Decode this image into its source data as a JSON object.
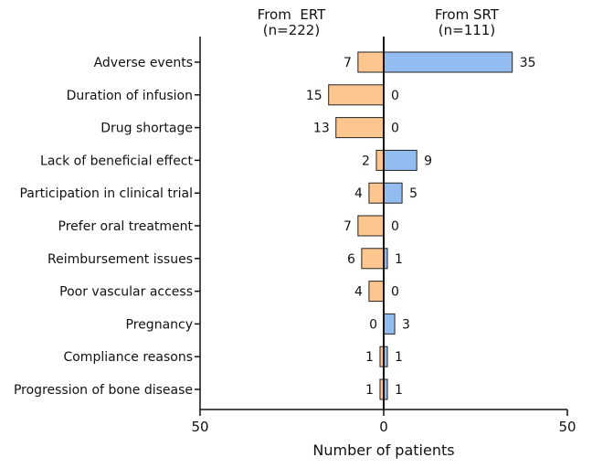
{
  "chart_data": {
    "type": "bar",
    "orientation": "horizontal-diverging",
    "left_header": {
      "title": "From  ERT",
      "subtitle": "(n=222)"
    },
    "right_header": {
      "title": "From SRT",
      "subtitle": "(n=111)"
    },
    "xlabel": "Number of patients",
    "xlim": [
      -50,
      50
    ],
    "x_ticks": [
      {
        "value": -50,
        "label": "50"
      },
      {
        "value": 0,
        "label": "0"
      },
      {
        "value": 50,
        "label": "50"
      }
    ],
    "categories": [
      "Adverse events",
      "Duration of infusion",
      "Drug shortage",
      "Lack of beneficial effect",
      "Participation in clinical trial",
      "Prefer oral treatment",
      "Reimbursement issues",
      "Poor vascular access",
      "Pregnancy",
      "Compliance reasons",
      "Progression of bone disease"
    ],
    "series": [
      {
        "name": "From ERT",
        "side": "left",
        "color": "#fcc68e",
        "values": [
          7,
          15,
          13,
          2,
          4,
          7,
          6,
          4,
          0,
          1,
          1
        ]
      },
      {
        "name": "From SRT",
        "side": "right",
        "color": "#93bdf0",
        "values": [
          35,
          0,
          0,
          9,
          5,
          0,
          1,
          0,
          3,
          1,
          1
        ]
      }
    ]
  }
}
